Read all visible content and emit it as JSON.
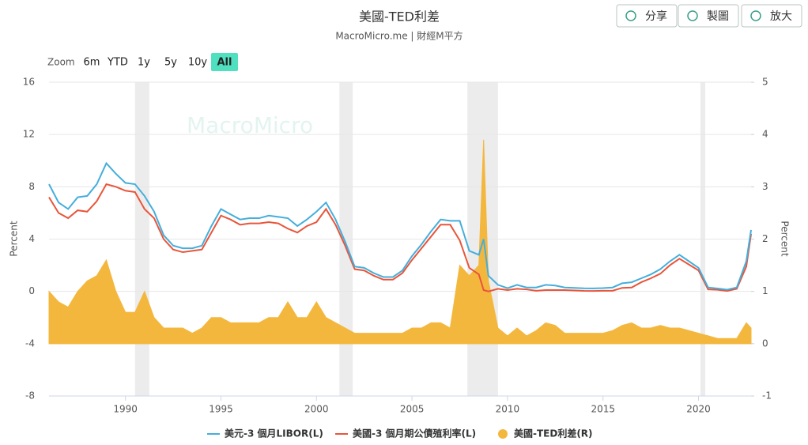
{
  "header": {
    "buttons": [
      "分享",
      "製圖",
      "放大"
    ]
  },
  "zoom": {
    "label": "Zoom",
    "options": [
      "6m",
      "YTD",
      "1y",
      "5y",
      "10y",
      "All"
    ],
    "selected": "All"
  },
  "chart_data": {
    "type": "line",
    "title": "美國-TED利差",
    "subtitle": "MacroMicro.me | 財經M平方",
    "watermark": "MacroMicro",
    "y_label": "Percent",
    "y2_label": "Percent",
    "x": [
      1986,
      1986.5,
      1987,
      1987.5,
      1988,
      1988.5,
      1989,
      1989.5,
      1990,
      1990.5,
      1991,
      1991.5,
      1992,
      1992.5,
      1993,
      1993.5,
      1994,
      1994.5,
      1995,
      1995.5,
      1996,
      1996.5,
      1997,
      1997.5,
      1998,
      1998.5,
      1999,
      1999.5,
      2000,
      2000.5,
      2001,
      2001.5,
      2002,
      2002.5,
      2003,
      2003.5,
      2004,
      2004.5,
      2005,
      2005.5,
      2006,
      2006.5,
      2007,
      2007.5,
      2008,
      2008.5,
      2008.75,
      2009,
      2009.5,
      2010,
      2010.5,
      2011,
      2011.5,
      2012,
      2012.5,
      2013,
      2013.5,
      2014,
      2014.5,
      2015,
      2015.5,
      2016,
      2016.5,
      2017,
      2017.5,
      2018,
      2018.5,
      2019,
      2019.5,
      2020,
      2020.5,
      2021,
      2021.5,
      2022,
      2022.5,
      2022.75
    ],
    "xlim": [
      1986,
      2022.75
    ],
    "xticks": [
      1990,
      1995,
      2000,
      2005,
      2010,
      2015,
      2020
    ],
    "ylim": [
      -8,
      16
    ],
    "yticks": [
      -8,
      -4,
      0,
      4,
      8,
      12,
      16
    ],
    "y2lim": [
      -1,
      5
    ],
    "y2ticks": [
      -1,
      0,
      1,
      2,
      3,
      4,
      5
    ],
    "grid": true,
    "shaded_periods": [
      [
        1990.5,
        1991.25
      ],
      [
        2001.2,
        2001.9
      ],
      [
        2007.9,
        2009.5
      ],
      [
        2020.1,
        2020.35
      ]
    ],
    "series": [
      {
        "name": "美元-3 個月LIBOR(L)",
        "color": "#45aedb",
        "kind": "line",
        "values": [
          8.2,
          6.8,
          6.3,
          7.2,
          7.3,
          8.2,
          9.8,
          9.0,
          8.3,
          8.2,
          7.3,
          6.1,
          4.3,
          3.5,
          3.3,
          3.3,
          3.5,
          5.0,
          6.3,
          5.9,
          5.5,
          5.6,
          5.6,
          5.8,
          5.7,
          5.6,
          5.0,
          5.5,
          6.1,
          6.8,
          5.5,
          3.8,
          1.9,
          1.8,
          1.4,
          1.1,
          1.1,
          1.6,
          2.7,
          3.6,
          4.6,
          5.5,
          5.4,
          5.4,
          3.1,
          2.8,
          4.0,
          1.2,
          0.5,
          0.25,
          0.5,
          0.3,
          0.3,
          0.5,
          0.45,
          0.3,
          0.27,
          0.24,
          0.23,
          0.25,
          0.3,
          0.62,
          0.7,
          1.0,
          1.3,
          1.7,
          2.3,
          2.8,
          2.3,
          1.8,
          0.3,
          0.22,
          0.13,
          0.3,
          2.3,
          4.7
        ]
      },
      {
        "name": "美國-3 個月期公債殖利率(L)",
        "color": "#e8553a",
        "kind": "line",
        "values": [
          7.2,
          6.0,
          5.6,
          6.2,
          6.1,
          6.9,
          8.2,
          8.0,
          7.7,
          7.6,
          6.3,
          5.6,
          4.0,
          3.2,
          3.0,
          3.1,
          3.2,
          4.5,
          5.8,
          5.5,
          5.1,
          5.2,
          5.2,
          5.3,
          5.2,
          4.8,
          4.5,
          5.0,
          5.3,
          6.3,
          5.1,
          3.5,
          1.7,
          1.6,
          1.2,
          0.9,
          0.9,
          1.4,
          2.4,
          3.3,
          4.2,
          5.1,
          5.1,
          3.9,
          1.8,
          1.3,
          0.1,
          0.0,
          0.2,
          0.1,
          0.2,
          0.15,
          0.05,
          0.1,
          0.1,
          0.1,
          0.07,
          0.04,
          0.03,
          0.05,
          0.05,
          0.27,
          0.3,
          0.7,
          1.0,
          1.35,
          2.0,
          2.5,
          2.05,
          1.6,
          0.15,
          0.12,
          0.03,
          0.2,
          1.9,
          4.4
        ]
      },
      {
        "name": "美國-TED利差(R)",
        "color": "#f4b73e",
        "kind": "area",
        "axis": "y2",
        "values": [
          1.0,
          0.8,
          0.7,
          1.0,
          1.2,
          1.3,
          1.6,
          1.0,
          0.6,
          0.6,
          1.0,
          0.5,
          0.3,
          0.3,
          0.3,
          0.2,
          0.3,
          0.5,
          0.5,
          0.4,
          0.4,
          0.4,
          0.4,
          0.5,
          0.5,
          0.8,
          0.5,
          0.5,
          0.8,
          0.5,
          0.4,
          0.3,
          0.2,
          0.2,
          0.2,
          0.2,
          0.2,
          0.2,
          0.3,
          0.3,
          0.4,
          0.4,
          0.3,
          1.5,
          1.3,
          1.5,
          3.9,
          1.2,
          0.3,
          0.15,
          0.3,
          0.15,
          0.25,
          0.4,
          0.35,
          0.2,
          0.2,
          0.2,
          0.2,
          0.2,
          0.25,
          0.35,
          0.4,
          0.3,
          0.3,
          0.35,
          0.3,
          0.3,
          0.25,
          0.2,
          0.15,
          0.1,
          0.1,
          0.1,
          0.4,
          0.3
        ]
      }
    ]
  }
}
